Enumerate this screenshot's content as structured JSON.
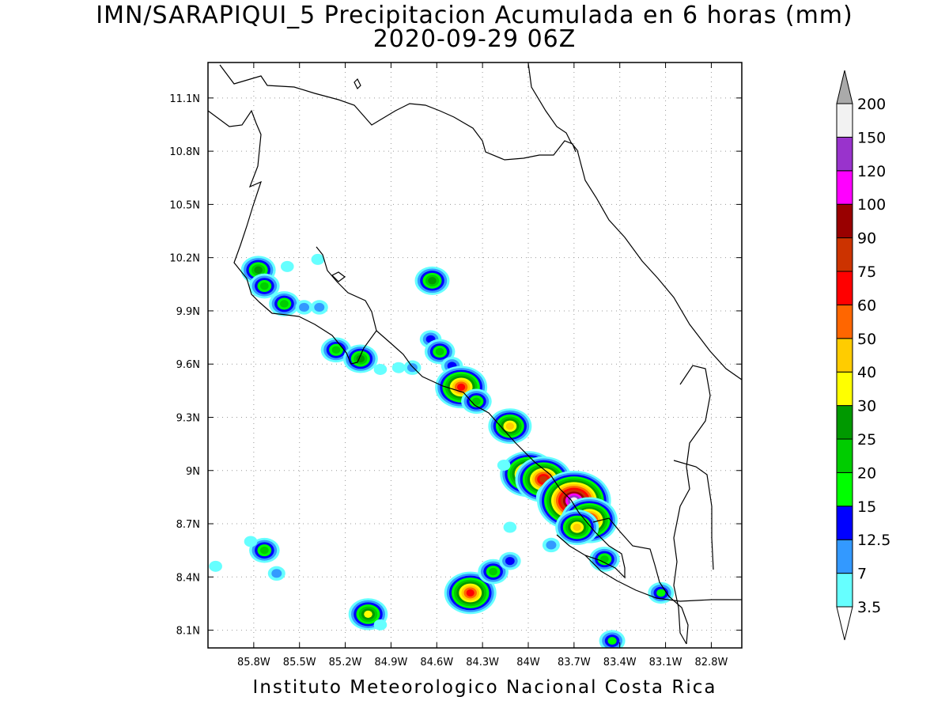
{
  "header": {
    "title": "IMN/SARAPIQUI_5 Precipitacion Acumulada en 6 horas (mm)",
    "subtitle": "2020-09-29 06Z"
  },
  "footer": {
    "credit": "Instituto Meteorologico Nacional Costa Rica"
  },
  "map": {
    "lon_range": [
      -86.1,
      -82.6
    ],
    "lat_range": [
      8.0,
      11.3
    ],
    "lon_ticks": [
      {
        "value": -85.8,
        "label": "85.8W"
      },
      {
        "value": -85.5,
        "label": "85.5W"
      },
      {
        "value": -85.2,
        "label": "85.2W"
      },
      {
        "value": -84.9,
        "label": "84.9W"
      },
      {
        "value": -84.6,
        "label": "84.6W"
      },
      {
        "value": -84.3,
        "label": "84.3W"
      },
      {
        "value": -84.0,
        "label": "84W"
      },
      {
        "value": -83.7,
        "label": "83.7W"
      },
      {
        "value": -83.4,
        "label": "83.4W"
      },
      {
        "value": -83.1,
        "label": "83.1W"
      },
      {
        "value": -82.8,
        "label": "82.8W"
      }
    ],
    "lat_ticks": [
      {
        "value": 11.1,
        "label": "11.1N"
      },
      {
        "value": 10.8,
        "label": "10.8N"
      },
      {
        "value": 10.5,
        "label": "10.5N"
      },
      {
        "value": 10.2,
        "label": "10.2N"
      },
      {
        "value": 9.9,
        "label": "9.9N"
      },
      {
        "value": 9.6,
        "label": "9.6N"
      },
      {
        "value": 9.3,
        "label": "9.3N"
      },
      {
        "value": 9.0,
        "label": "9N"
      },
      {
        "value": 8.7,
        "label": "8.7N"
      },
      {
        "value": 8.4,
        "label": "8.4N"
      },
      {
        "value": 8.1,
        "label": "8.1N"
      }
    ],
    "grid": "dotted",
    "colors": {
      "background": "#ffffff",
      "coastline": "#000000",
      "grid": "#999999"
    },
    "precip_cells": [
      {
        "lon": -85.77,
        "lat": 10.13,
        "peak_mm": 25
      },
      {
        "lon": -85.73,
        "lat": 10.04,
        "peak_mm": 20
      },
      {
        "lon": -85.6,
        "lat": 9.94,
        "peak_mm": 20
      },
      {
        "lon": -85.47,
        "lat": 9.92,
        "peak_mm": 7
      },
      {
        "lon": -85.37,
        "lat": 9.92,
        "peak_mm": 7
      },
      {
        "lon": -85.58,
        "lat": 10.15,
        "peak_mm": 3.5
      },
      {
        "lon": -85.38,
        "lat": 10.19,
        "peak_mm": 3.5
      },
      {
        "lon": -85.26,
        "lat": 9.68,
        "peak_mm": 20
      },
      {
        "lon": -85.1,
        "lat": 9.63,
        "peak_mm": 25
      },
      {
        "lon": -84.97,
        "lat": 9.57,
        "peak_mm": 3.5
      },
      {
        "lon": -84.85,
        "lat": 9.58,
        "peak_mm": 3.5
      },
      {
        "lon": -84.76,
        "lat": 9.58,
        "peak_mm": 7
      },
      {
        "lon": -84.63,
        "lat": 10.07,
        "peak_mm": 25
      },
      {
        "lon": -84.64,
        "lat": 9.74,
        "peak_mm": 12.5
      },
      {
        "lon": -84.58,
        "lat": 9.67,
        "peak_mm": 20
      },
      {
        "lon": -84.5,
        "lat": 9.59,
        "peak_mm": 12.5
      },
      {
        "lon": -84.44,
        "lat": 9.47,
        "peak_mm": 60
      },
      {
        "lon": -84.34,
        "lat": 9.39,
        "peak_mm": 20
      },
      {
        "lon": -84.12,
        "lat": 9.25,
        "peak_mm": 40
      },
      {
        "lon": -84.0,
        "lat": 8.98,
        "peak_mm": 75
      },
      {
        "lon": -83.9,
        "lat": 8.95,
        "peak_mm": 75
      },
      {
        "lon": -83.82,
        "lat": 8.85,
        "peak_mm": 30
      },
      {
        "lon": -83.7,
        "lat": 8.83,
        "peak_mm": 150
      },
      {
        "lon": -83.6,
        "lat": 8.72,
        "peak_mm": 75
      },
      {
        "lon": -83.68,
        "lat": 8.68,
        "peak_mm": 40
      },
      {
        "lon": -83.5,
        "lat": 8.5,
        "peak_mm": 20
      },
      {
        "lon": -83.85,
        "lat": 8.58,
        "peak_mm": 7
      },
      {
        "lon": -84.16,
        "lat": 9.03,
        "peak_mm": 3.5
      },
      {
        "lon": -84.12,
        "lat": 8.68,
        "peak_mm": 3.5
      },
      {
        "lon": -85.73,
        "lat": 8.55,
        "peak_mm": 20
      },
      {
        "lon": -85.82,
        "lat": 8.6,
        "peak_mm": 3.5
      },
      {
        "lon": -85.65,
        "lat": 8.42,
        "peak_mm": 7
      },
      {
        "lon": -86.05,
        "lat": 8.46,
        "peak_mm": 3.5
      },
      {
        "lon": -84.38,
        "lat": 8.31,
        "peak_mm": 60
      },
      {
        "lon": -84.23,
        "lat": 8.43,
        "peak_mm": 20
      },
      {
        "lon": -84.12,
        "lat": 8.49,
        "peak_mm": 12.5
      },
      {
        "lon": -85.05,
        "lat": 8.19,
        "peak_mm": 30
      },
      {
        "lon": -84.97,
        "lat": 8.13,
        "peak_mm": 3.5
      },
      {
        "lon": -83.13,
        "lat": 8.31,
        "peak_mm": 15
      },
      {
        "lon": -83.45,
        "lat": 8.04,
        "peak_mm": 15
      }
    ]
  },
  "legend": {
    "levels": [
      "3.5",
      "7",
      "12.5",
      "15",
      "20",
      "25",
      "30",
      "40",
      "50",
      "60",
      "75",
      "90",
      "100",
      "120",
      "150",
      "200"
    ],
    "colors": [
      "#ffffff",
      "#66ffff",
      "#3399ff",
      "#0000ff",
      "#00ff00",
      "#00cc00",
      "#009900",
      "#ffff00",
      "#ffcc00",
      "#ff6600",
      "#ff0000",
      "#cc3300",
      "#990000",
      "#ff00ff",
      "#9933cc",
      "#f2f2f2",
      "#aaaaaa"
    ]
  }
}
